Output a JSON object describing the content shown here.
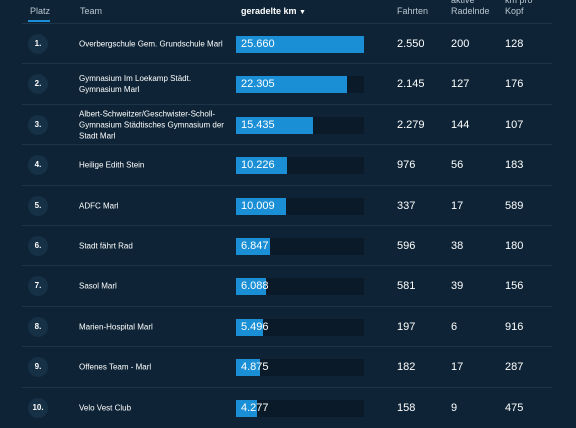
{
  "header": {
    "rank": "Platz",
    "team": "Team",
    "km": "geradelte km",
    "rides": "Fahrten",
    "active": "aktive Radelnde",
    "per_head": "km pro Kopf"
  },
  "table": {
    "rows": [
      {
        "rank": "1.",
        "team": "Overbergschule Gem. Grundschule Marl",
        "km": {
          "value": 25660,
          "label": "25.660"
        },
        "rides": "2.550",
        "active": "200",
        "per_head": "128"
      },
      {
        "rank": "2.",
        "team": "Gymnasium Im Loekamp Städt. Gymnasium Marl",
        "km": {
          "value": 22305,
          "label": "22.305"
        },
        "rides": "2.145",
        "active": "127",
        "per_head": "176"
      },
      {
        "rank": "3.",
        "team": "Albert-Schweitzer/Geschwister-Scholl- Gymnasium Städtisches Gymnasium der Stadt Marl",
        "km": {
          "value": 15435,
          "label": "15.435"
        },
        "rides": "2.279",
        "active": "144",
        "per_head": "107"
      },
      {
        "rank": "4.",
        "team": "Heilige Edith Stein",
        "km": {
          "value": 10226,
          "label": "10.226"
        },
        "rides": "976",
        "active": "56",
        "per_head": "183"
      },
      {
        "rank": "5.",
        "team": "ADFC Marl",
        "km": {
          "value": 10009,
          "label": "10.009"
        },
        "rides": "337",
        "active": "17",
        "per_head": "589"
      },
      {
        "rank": "6.",
        "team": "Stadt fährt Rad",
        "km": {
          "value": 6847,
          "label": "6.847"
        },
        "rides": "596",
        "active": "38",
        "per_head": "180"
      },
      {
        "rank": "7.",
        "team": "Sasol Marl",
        "km": {
          "value": 6088,
          "label": "6.088"
        },
        "rides": "581",
        "active": "39",
        "per_head": "156"
      },
      {
        "rank": "8.",
        "team": "Marien-Hospital Marl",
        "km": {
          "value": 5496,
          "label": "5.496"
        },
        "rides": "197",
        "active": "6",
        "per_head": "916"
      },
      {
        "rank": "9.",
        "team": "Offenes Team - Marl",
        "km": {
          "value": 4875,
          "label": "4.875"
        },
        "rides": "182",
        "active": "17",
        "per_head": "287"
      },
      {
        "rank": "10.",
        "team": "Velo Vest Club",
        "km": {
          "value": 4277,
          "label": "4.277"
        },
        "rides": "158",
        "active": "9",
        "per_head": "475"
      }
    ]
  }
}
